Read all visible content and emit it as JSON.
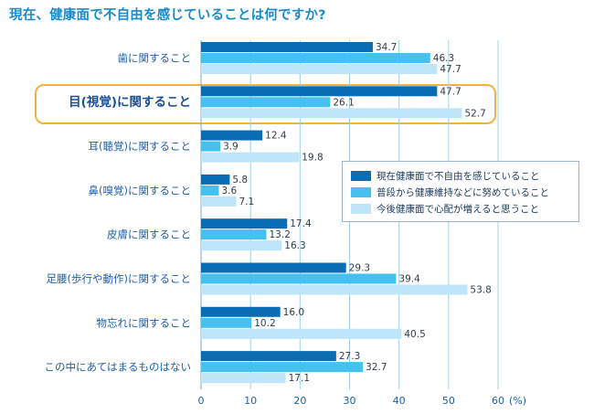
{
  "title": "現在、健康面で不自由を感じていることは何ですか?",
  "colors": {
    "series_current": "#0a6db3",
    "series_effort": "#45c0ef",
    "series_concern": "#bfe6f8",
    "highlight": "#f2b33d",
    "grid": "#9fd0ea"
  },
  "legend": {
    "items": [
      {
        "label": "現在健康面で不自由を感じていること"
      },
      {
        "label": "普段から健康維持などに努めていること"
      },
      {
        "label": "今後健康面で心配が増えると思うこと"
      }
    ],
    "position": "right-middle"
  },
  "chart_data": {
    "type": "bar",
    "orientation": "horizontal",
    "categories": [
      "歯に関すること",
      "目(視覚)に関すること",
      "耳(聴覚)に関すること",
      "鼻(嗅覚)に関すること",
      "皮膚に関すること",
      "足腰(歩行や動作)に関すること",
      "物忘れに関すること",
      "この中にあてはまるものはない"
    ],
    "highlighted_category": "目(視覚)に関すること",
    "series": [
      {
        "name": "現在健康面で不自由を感じていること",
        "values": [
          34.7,
          47.7,
          12.4,
          5.8,
          17.4,
          29.3,
          16.0,
          27.3
        ],
        "labels": [
          "34.7",
          "47.7",
          "12.4",
          "5.8",
          "17.4",
          "29.3",
          "16.0",
          "27.3"
        ]
      },
      {
        "name": "普段から健康維持などに努めていること",
        "values": [
          46.3,
          26.1,
          3.9,
          3.6,
          13.2,
          39.4,
          10.2,
          32.7
        ],
        "labels": [
          "46.3",
          "26.1",
          "3.9",
          "3.6",
          "13.2",
          "39.4",
          "10.2",
          "32.7"
        ]
      },
      {
        "name": "今後健康面で心配が増えると思うこと",
        "values": [
          47.7,
          52.7,
          19.8,
          7.1,
          16.3,
          53.8,
          40.5,
          17.1
        ],
        "labels": [
          "47.7",
          "52.7",
          "19.8",
          "7.1",
          "16.3",
          "53.8",
          "40.5",
          "17.1"
        ]
      }
    ],
    "xlim": [
      0,
      60
    ],
    "xticks": [
      0,
      10,
      20,
      30,
      40,
      50,
      60
    ],
    "xtick_labels": [
      "0",
      "10",
      "20",
      "30",
      "40",
      "50",
      "60"
    ],
    "xunit": "(%)",
    "grid": true,
    "title": "現在、健康面で不自由を感じていることは何ですか?"
  }
}
